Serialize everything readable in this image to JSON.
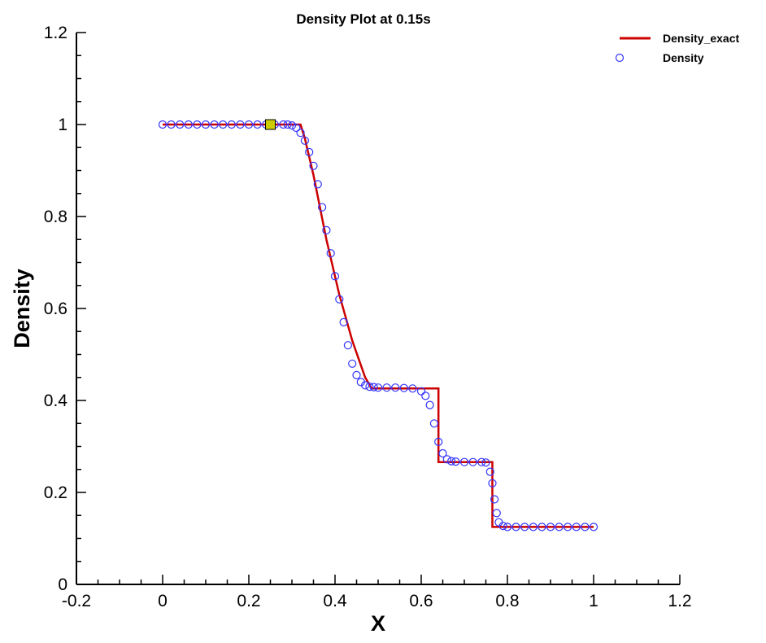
{
  "chart_data": {
    "type": "line",
    "title": "Density Plot at 0.15s",
    "xlabel": "X",
    "ylabel": "Density",
    "xlim": [
      -0.2,
      1.2
    ],
    "ylim": [
      0,
      1.2
    ],
    "x_ticks": [
      -0.2,
      0,
      0.2,
      0.4,
      0.6,
      0.8,
      1,
      1.2
    ],
    "x_tick_labels": [
      "-0.2",
      "0",
      "0.2",
      "0.4",
      "0.6",
      "0.8",
      "1",
      "1.2"
    ],
    "y_ticks": [
      0,
      0.2,
      0.4,
      0.6,
      0.8,
      1,
      1.2
    ],
    "y_tick_labels": [
      "0",
      "0.2",
      "0.4",
      "0.6",
      "0.8",
      "1",
      "1.2"
    ],
    "grid": false,
    "legend_position": "top-right",
    "series": [
      {
        "name": "Density_exact",
        "style": "line",
        "color": "#cc0000",
        "x": [
          0,
          0.32,
          0.33,
          0.35,
          0.38,
          0.41,
          0.44,
          0.47,
          0.485,
          0.64,
          0.64,
          0.765,
          0.765,
          1.0
        ],
        "y": [
          1.0,
          1.0,
          0.97,
          0.89,
          0.75,
          0.63,
          0.53,
          0.45,
          0.426,
          0.426,
          0.266,
          0.266,
          0.125,
          0.125
        ]
      },
      {
        "name": "Density",
        "style": "markers",
        "marker": "circle",
        "color": "#3333ff",
        "x": [
          0,
          0.02,
          0.04,
          0.06,
          0.08,
          0.1,
          0.12,
          0.14,
          0.16,
          0.18,
          0.2,
          0.22,
          0.24,
          0.26,
          0.28,
          0.29,
          0.3,
          0.31,
          0.32,
          0.33,
          0.34,
          0.35,
          0.36,
          0.37,
          0.38,
          0.39,
          0.4,
          0.41,
          0.42,
          0.43,
          0.44,
          0.45,
          0.46,
          0.47,
          0.48,
          0.49,
          0.5,
          0.52,
          0.54,
          0.56,
          0.58,
          0.6,
          0.61,
          0.62,
          0.63,
          0.64,
          0.65,
          0.66,
          0.67,
          0.68,
          0.7,
          0.72,
          0.74,
          0.75,
          0.76,
          0.765,
          0.77,
          0.775,
          0.78,
          0.79,
          0.8,
          0.82,
          0.84,
          0.86,
          0.88,
          0.9,
          0.92,
          0.94,
          0.96,
          0.98,
          1.0
        ],
        "y": [
          1.0,
          1.0,
          1.0,
          1.0,
          1.0,
          1.0,
          1.0,
          1.0,
          1.0,
          1.0,
          1.0,
          1.0,
          1.0,
          1.0,
          1.0,
          1.0,
          0.998,
          0.993,
          0.982,
          0.965,
          0.94,
          0.91,
          0.87,
          0.82,
          0.77,
          0.72,
          0.67,
          0.62,
          0.57,
          0.52,
          0.48,
          0.455,
          0.44,
          0.433,
          0.43,
          0.429,
          0.428,
          0.428,
          0.428,
          0.427,
          0.426,
          0.42,
          0.41,
          0.39,
          0.35,
          0.31,
          0.285,
          0.272,
          0.268,
          0.267,
          0.266,
          0.266,
          0.266,
          0.265,
          0.245,
          0.22,
          0.185,
          0.155,
          0.135,
          0.127,
          0.125,
          0.125,
          0.125,
          0.125,
          0.125,
          0.125,
          0.125,
          0.125,
          0.125,
          0.125,
          0.125
        ]
      }
    ],
    "annotations": [
      {
        "type": "square-marker",
        "x": 0.25,
        "y": 1.0,
        "color": "#cccc00"
      }
    ]
  }
}
